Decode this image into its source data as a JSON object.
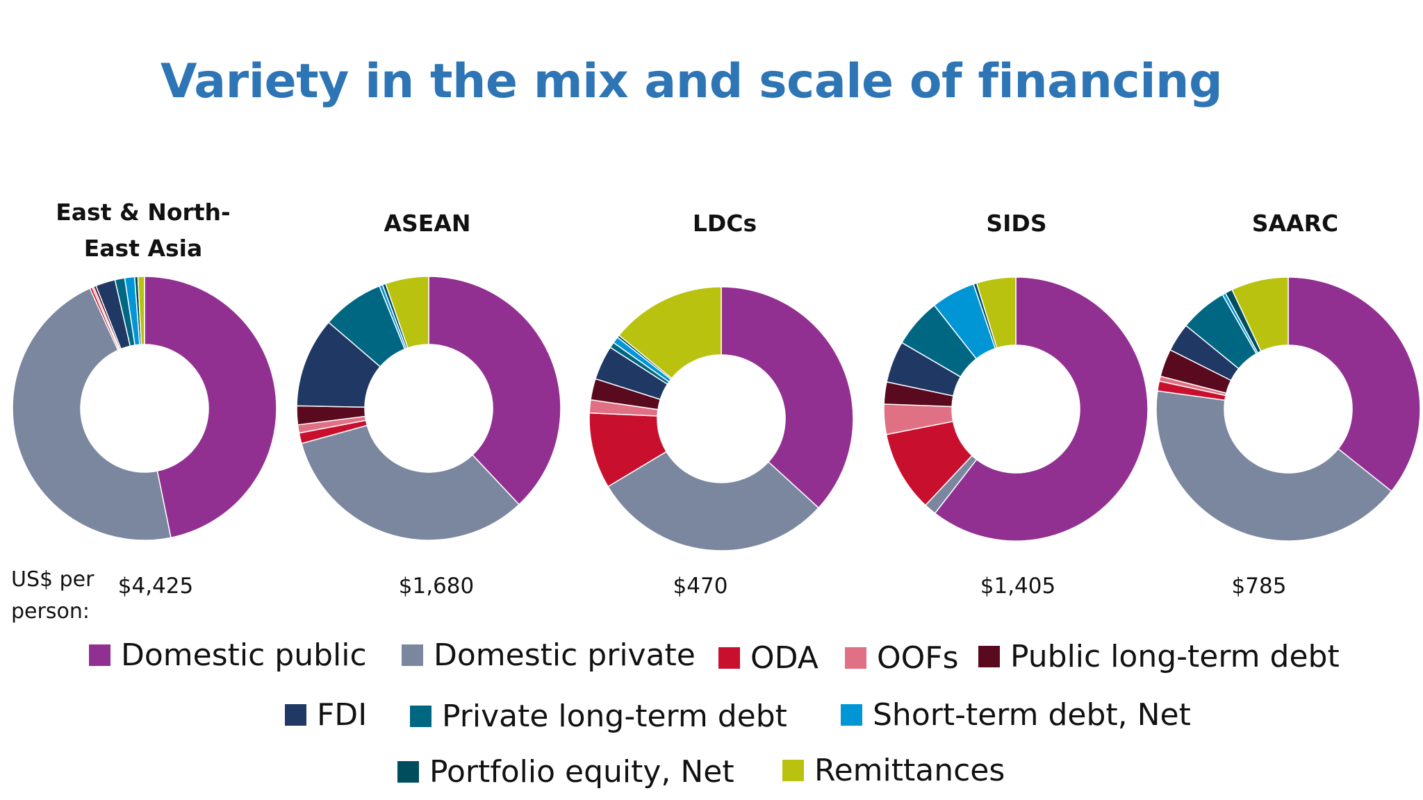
{
  "title": "Variety in the mix and scale of financing",
  "per_person_label": "US$ per person:",
  "legend": [
    {
      "name": "Domestic public",
      "color": "#923092"
    },
    {
      "name": "Domestic private",
      "color": "#7a879f"
    },
    {
      "name": "ODA",
      "color": "#c8102e"
    },
    {
      "name": "OOFs",
      "color": "#e07083"
    },
    {
      "name": "Public long-term debt",
      "color": "#5a0a1e"
    },
    {
      "name": "FDI",
      "color": "#1f3864"
    },
    {
      "name": "Private long-term debt",
      "color": "#006782"
    },
    {
      "name": "Short-term debt, Net",
      "color": "#0096d6"
    },
    {
      "name": "Portfolio equity, Net",
      "color": "#004d5e"
    },
    {
      "name": "Remittances",
      "color": "#b8c20f"
    }
  ],
  "chart_data": {
    "type": "pie",
    "variant": "donut",
    "title": "Variety in the mix and scale of financing",
    "categories": [
      "Domestic public",
      "Domestic private",
      "ODA",
      "OOFs",
      "Public long-term debt",
      "FDI",
      "Private long-term debt",
      "Short-term debt, Net",
      "Portfolio equity, Net",
      "Remittances"
    ],
    "legend_position": "bottom",
    "charts": [
      {
        "label": "East & North-\nEast Asia",
        "us_per_person": "$4,425",
        "values": [
          46.8,
          46.4,
          0.3,
          0.2,
          0.3,
          2.4,
          1.2,
          1.2,
          0.4,
          0.8
        ]
      },
      {
        "label": "ASEAN",
        "us_per_person": "$1,680",
        "values": [
          38.0,
          32.7,
          1.3,
          1.0,
          2.3,
          11.0,
          7.6,
          0.4,
          0.4,
          5.3
        ]
      },
      {
        "label": "LDCs",
        "us_per_person": "$470",
        "values": [
          36.8,
          29.6,
          9.3,
          1.6,
          2.6,
          4.2,
          0.7,
          0.8,
          0.3,
          14.1
        ]
      },
      {
        "label": "SIDS",
        "us_per_person": "$1,405",
        "values": [
          60.5,
          1.5,
          9.9,
          3.7,
          2.7,
          5.1,
          6.0,
          5.4,
          0.4,
          4.8
        ]
      },
      {
        "label": "SAARC",
        "us_per_person": "$785",
        "values": [
          35.7,
          41.5,
          1.2,
          0.6,
          3.4,
          3.5,
          5.8,
          0.4,
          0.9,
          7.0
        ]
      }
    ]
  }
}
